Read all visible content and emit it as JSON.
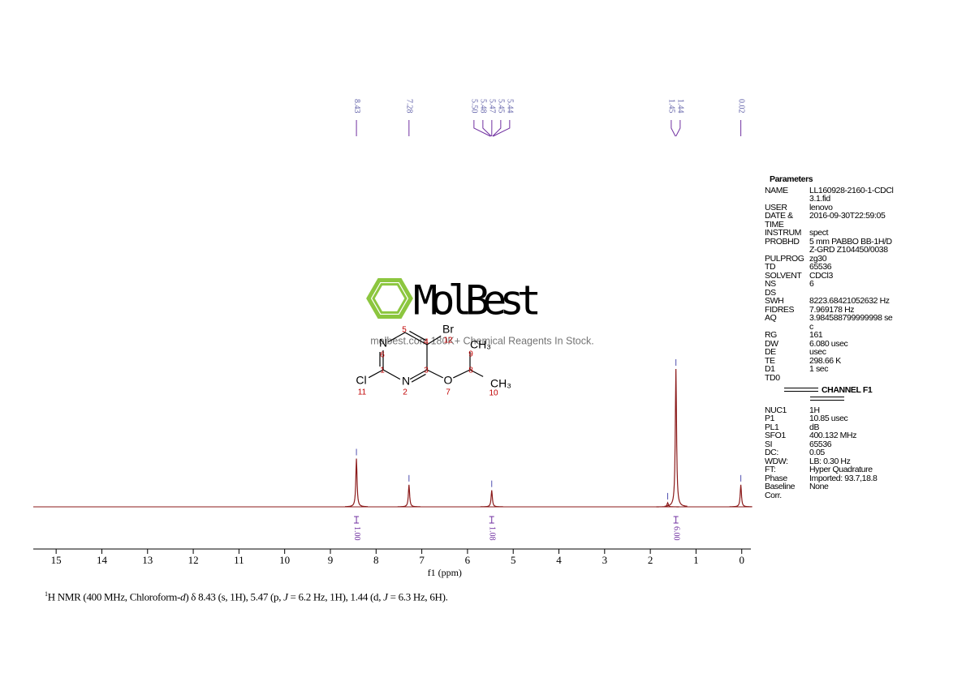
{
  "chart_data": {
    "type": "nmr",
    "xlabel": "f1 (ppm)",
    "xlim": [
      15.5,
      -0.2
    ],
    "xticks": [
      15,
      14,
      13,
      12,
      11,
      10,
      9,
      8,
      7,
      6,
      5,
      4,
      3,
      2,
      1,
      0
    ],
    "color": "#8b1a1a",
    "annotation_color": "#7030a0",
    "peaks": {
      "x": [
        8.43,
        7.28,
        5.47,
        1.62,
        1.44,
        0.02
      ],
      "values": [
        35,
        16,
        12,
        3,
        100,
        16
      ]
    },
    "peak_labels": {
      "values": [
        8.43,
        7.28,
        5.5,
        5.48,
        5.47,
        5.45,
        5.44,
        1.45,
        1.44,
        0.02
      ],
      "value_labels": [
        "8.43",
        "7.28",
        "5.50",
        "5.48",
        "5.47",
        "5.45",
        "5.44",
        "1.45",
        "1.44",
        "0.02"
      ]
    },
    "integrals": {
      "x": [
        8.43,
        5.47,
        1.44
      ],
      "values": [
        1,
        1.08,
        6
      ],
      "value_labels": [
        "1.00",
        "1.08",
        "6.00"
      ]
    }
  },
  "parameters": {
    "title": "Parameters",
    "rows": [
      [
        "NAME",
        "LL160928-2160-1-CDCl3.1.fid"
      ],
      [
        "USER",
        "lenovo"
      ],
      [
        "DATE & TIME",
        "2016-09-30T22:59:05"
      ],
      [
        "INSTRUM",
        "spect"
      ],
      [
        "PROBHD",
        "5 mm PABBO BB-1H/D Z-GRD Z104450/0038"
      ],
      [
        "PULPROG",
        "zg30"
      ],
      [
        "TD",
        "65536"
      ],
      [
        "SOLVENT",
        "CDCl3"
      ],
      [
        "NS",
        "6"
      ],
      [
        "DS"
      ],
      [
        "SWH",
        "8223.68421052632 Hz"
      ],
      [
        "FIDRES",
        "7.969178 Hz"
      ],
      [
        "AQ",
        "3.984588799999998 sec"
      ],
      [
        "RG",
        "161"
      ],
      [
        "DW",
        "6.080 usec"
      ],
      [
        "DE",
        "usec"
      ],
      [
        "TE",
        "298.66 K"
      ],
      [
        "D1",
        "1 sec"
      ],
      [
        "TD0"
      ]
    ],
    "channel": "CHANNEL F1",
    "channel_rows": [
      [
        "NUC1",
        "1H"
      ],
      [
        "P1",
        "10.85 usec"
      ],
      [
        "PL1",
        "dB"
      ],
      [
        "SFO1",
        "400.132 MHz"
      ],
      [
        "SI",
        "65536"
      ],
      [
        "DC:",
        "0.05"
      ],
      [
        "WDW:",
        "LB: 0.30 Hz"
      ],
      [
        "FT:",
        "Hyper Quadrature"
      ],
      [
        "Phase",
        "Imported: 93.7,18.8"
      ],
      [
        "Baseline Corr.",
        "None"
      ]
    ]
  },
  "molecule": {
    "atoms": [
      "N",
      "Br",
      "CH₃",
      "Cl",
      "N",
      "O",
      "CH₃"
    ],
    "numbers": [
      "1",
      "2",
      "3",
      "4",
      "5",
      "6",
      "7",
      "8",
      "9",
      "10",
      "11",
      "12"
    ]
  },
  "watermark": {
    "brand": "MolBest",
    "tagline": "molbest.com 180K+ Chemical Reagents In Stock."
  },
  "caption": [
    {
      "text": "1",
      "style": "sup"
    },
    {
      "text": "H NMR (400 MHz, Chloroform-"
    },
    {
      "text": "d",
      "style": "italic"
    },
    {
      "text": ") δ 8.43 (s, 1H), 5.47 (p, "
    },
    {
      "text": "J",
      "style": "italic"
    },
    {
      "text": " = 6.2 Hz, 1H), 1.44 (d, "
    },
    {
      "text": "J",
      "style": "italic"
    },
    {
      "text": " = 6.3 Hz, 6H)."
    }
  ]
}
